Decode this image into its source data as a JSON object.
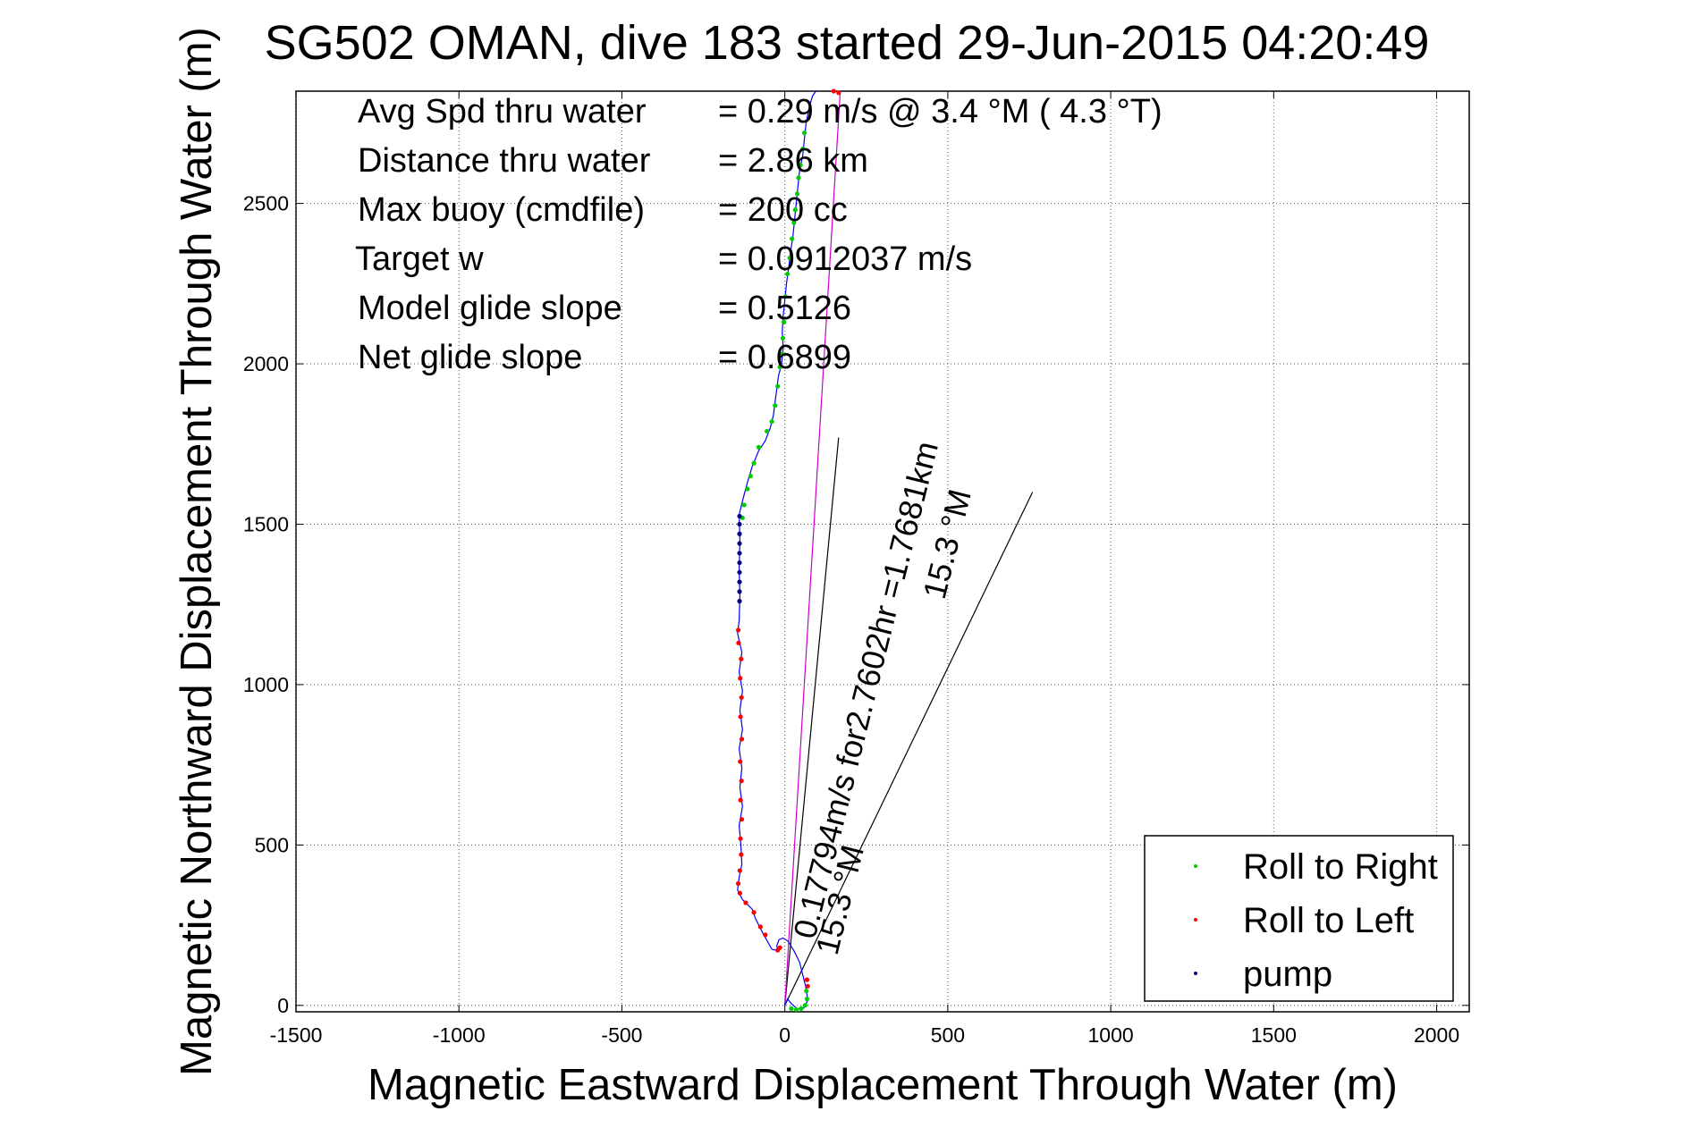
{
  "chart_data": {
    "type": "line",
    "title": "SG502 OMAN, dive 183 started 29-Jun-2015 04:20:49",
    "xlabel": "Magnetic Eastward Displacement Through Water (m)",
    "ylabel": "Magnetic Northward Displacement Through Water (m)",
    "xlim": [
      -1500,
      2100
    ],
    "ylim": [
      -20,
      2850
    ],
    "xticks": [
      -1500,
      -1000,
      -500,
      0,
      500,
      1000,
      1500,
      2000
    ],
    "yticks": [
      0,
      500,
      1000,
      1500,
      2000,
      2500
    ],
    "xtick_labels": [
      "-1500",
      "-1000",
      "-500",
      "0",
      "500",
      "1000",
      "1500",
      "2000"
    ],
    "ytick_labels": [
      "0",
      "500",
      "1000",
      "1500",
      "2000",
      "2500"
    ],
    "grid": true,
    "legend_position": "bottom-right",
    "info": [
      {
        "label": "Avg Spd thru water",
        "value": "=  0.29 m/s @   3.4 °M (  4.3 °T)"
      },
      {
        "label": "Distance thru water",
        "value": "=  2.86 km"
      },
      {
        "label": "Max buoy (cmdfile)",
        "value": "= 200 cc"
      },
      {
        "label": "Target w",
        "value": "= 0.0912037 m/s"
      },
      {
        "label": "Model glide slope",
        "value": "= 0.5126"
      },
      {
        "label": "Net glide slope",
        "value": "= 0.6899"
      }
    ],
    "annotations": [
      {
        "text": "0.17794m/s for2.7602hr =1.7681km",
        "color": "#000000"
      },
      {
        "text": "15.3 °M",
        "color": "#000000"
      },
      {
        "text": "15.3 °M",
        "color": "#000000"
      }
    ],
    "reference_lines": [
      {
        "from": [
          0,
          0
        ],
        "to": [
          165,
          1770
        ]
      },
      {
        "from": [
          0,
          0
        ],
        "to": [
          760,
          1600
        ]
      },
      {
        "from": [
          0,
          0
        ],
        "to": [
          170,
          2850
        ],
        "color": "#cc00cc"
      }
    ],
    "track": {
      "color": "#0000ff",
      "points": [
        [
          0,
          0
        ],
        [
          8,
          20
        ],
        [
          20,
          5
        ],
        [
          40,
          -12
        ],
        [
          58,
          -8
        ],
        [
          70,
          15
        ],
        [
          66,
          50
        ],
        [
          55,
          95
        ],
        [
          45,
          135
        ],
        [
          28,
          170
        ],
        [
          10,
          200
        ],
        [
          -5,
          210
        ],
        [
          -18,
          205
        ],
        [
          -25,
          185
        ],
        [
          -20,
          170
        ],
        [
          -40,
          175
        ],
        [
          -70,
          230
        ],
        [
          -90,
          270
        ],
        [
          -100,
          300
        ],
        [
          -130,
          330
        ],
        [
          -145,
          360
        ],
        [
          -140,
          400
        ],
        [
          -132,
          440
        ],
        [
          -135,
          500
        ],
        [
          -140,
          560
        ],
        [
          -130,
          620
        ],
        [
          -138,
          680
        ],
        [
          -132,
          740
        ],
        [
          -140,
          800
        ],
        [
          -130,
          860
        ],
        [
          -138,
          920
        ],
        [
          -130,
          980
        ],
        [
          -140,
          1040
        ],
        [
          -132,
          1100
        ],
        [
          -145,
          1160
        ],
        [
          -140,
          1200
        ],
        [
          -138,
          1280
        ],
        [
          -140,
          1360
        ],
        [
          -138,
          1450
        ],
        [
          -140,
          1530
        ],
        [
          -128,
          1580
        ],
        [
          -115,
          1630
        ],
        [
          -100,
          1680
        ],
        [
          -80,
          1730
        ],
        [
          -60,
          1760
        ],
        [
          -45,
          1800
        ],
        [
          -35,
          1840
        ],
        [
          -30,
          1880
        ],
        [
          -25,
          1920
        ],
        [
          -20,
          1960
        ],
        [
          -10,
          2000
        ],
        [
          -5,
          2050
        ],
        [
          -8,
          2100
        ],
        [
          -5,
          2150
        ],
        [
          0,
          2200
        ],
        [
          5,
          2250
        ],
        [
          12,
          2300
        ],
        [
          18,
          2350
        ],
        [
          25,
          2400
        ],
        [
          30,
          2450
        ],
        [
          35,
          2500
        ],
        [
          40,
          2550
        ],
        [
          45,
          2600
        ],
        [
          55,
          2650
        ],
        [
          60,
          2700
        ],
        [
          65,
          2750
        ],
        [
          75,
          2800
        ],
        [
          85,
          2835
        ],
        [
          95,
          2850
        ]
      ]
    },
    "series": [
      {
        "name": "Roll to Right",
        "color": "#00cc00",
        "points": [
          [
            20,
            -10
          ],
          [
            35,
            -13
          ],
          [
            50,
            -10
          ],
          [
            62,
            0
          ],
          [
            68,
            20
          ],
          [
            66,
            45
          ],
          [
            -130,
            1520
          ],
          [
            -125,
            1560
          ],
          [
            -115,
            1610
          ],
          [
            -105,
            1650
          ],
          [
            -95,
            1690
          ],
          [
            -80,
            1740
          ],
          [
            -55,
            1790
          ],
          [
            -40,
            1820
          ],
          [
            -30,
            1870
          ],
          [
            -22,
            1930
          ],
          [
            -15,
            1990
          ],
          [
            -8,
            2030
          ],
          [
            -6,
            2080
          ],
          [
            -3,
            2130
          ],
          [
            2,
            2210
          ],
          [
            8,
            2280
          ],
          [
            15,
            2330
          ],
          [
            22,
            2390
          ],
          [
            28,
            2440
          ],
          [
            32,
            2480
          ],
          [
            38,
            2530
          ],
          [
            42,
            2580
          ],
          [
            48,
            2620
          ],
          [
            55,
            2670
          ],
          [
            60,
            2720
          ]
        ]
      },
      {
        "name": "Roll to Left",
        "color": "#ff0000",
        "points": [
          [
            -15,
            180
          ],
          [
            -22,
            172
          ],
          [
            -60,
            220
          ],
          [
            -75,
            245
          ],
          [
            -95,
            290
          ],
          [
            -120,
            320
          ],
          [
            -138,
            350
          ],
          [
            -143,
            380
          ],
          [
            -138,
            420
          ],
          [
            -134,
            470
          ],
          [
            -136,
            520
          ],
          [
            -132,
            580
          ],
          [
            -136,
            640
          ],
          [
            -133,
            700
          ],
          [
            -137,
            760
          ],
          [
            -132,
            830
          ],
          [
            -136,
            900
          ],
          [
            -133,
            960
          ],
          [
            -137,
            1020
          ],
          [
            -134,
            1080
          ],
          [
            -142,
            1130
          ],
          [
            -143,
            1170
          ],
          [
            70,
            60
          ],
          [
            68,
            80
          ],
          [
            150,
            2850
          ],
          [
            165,
            2845
          ]
        ]
      },
      {
        "name": "pump",
        "color": "#000080",
        "points": [
          [
            -139,
            1260
          ],
          [
            -139,
            1290
          ],
          [
            -139,
            1320
          ],
          [
            -139,
            1350
          ],
          [
            -139,
            1380
          ],
          [
            -139,
            1410
          ],
          [
            -139,
            1440
          ],
          [
            -139,
            1470
          ],
          [
            -139,
            1500
          ],
          [
            -139,
            1525
          ]
        ]
      }
    ]
  }
}
